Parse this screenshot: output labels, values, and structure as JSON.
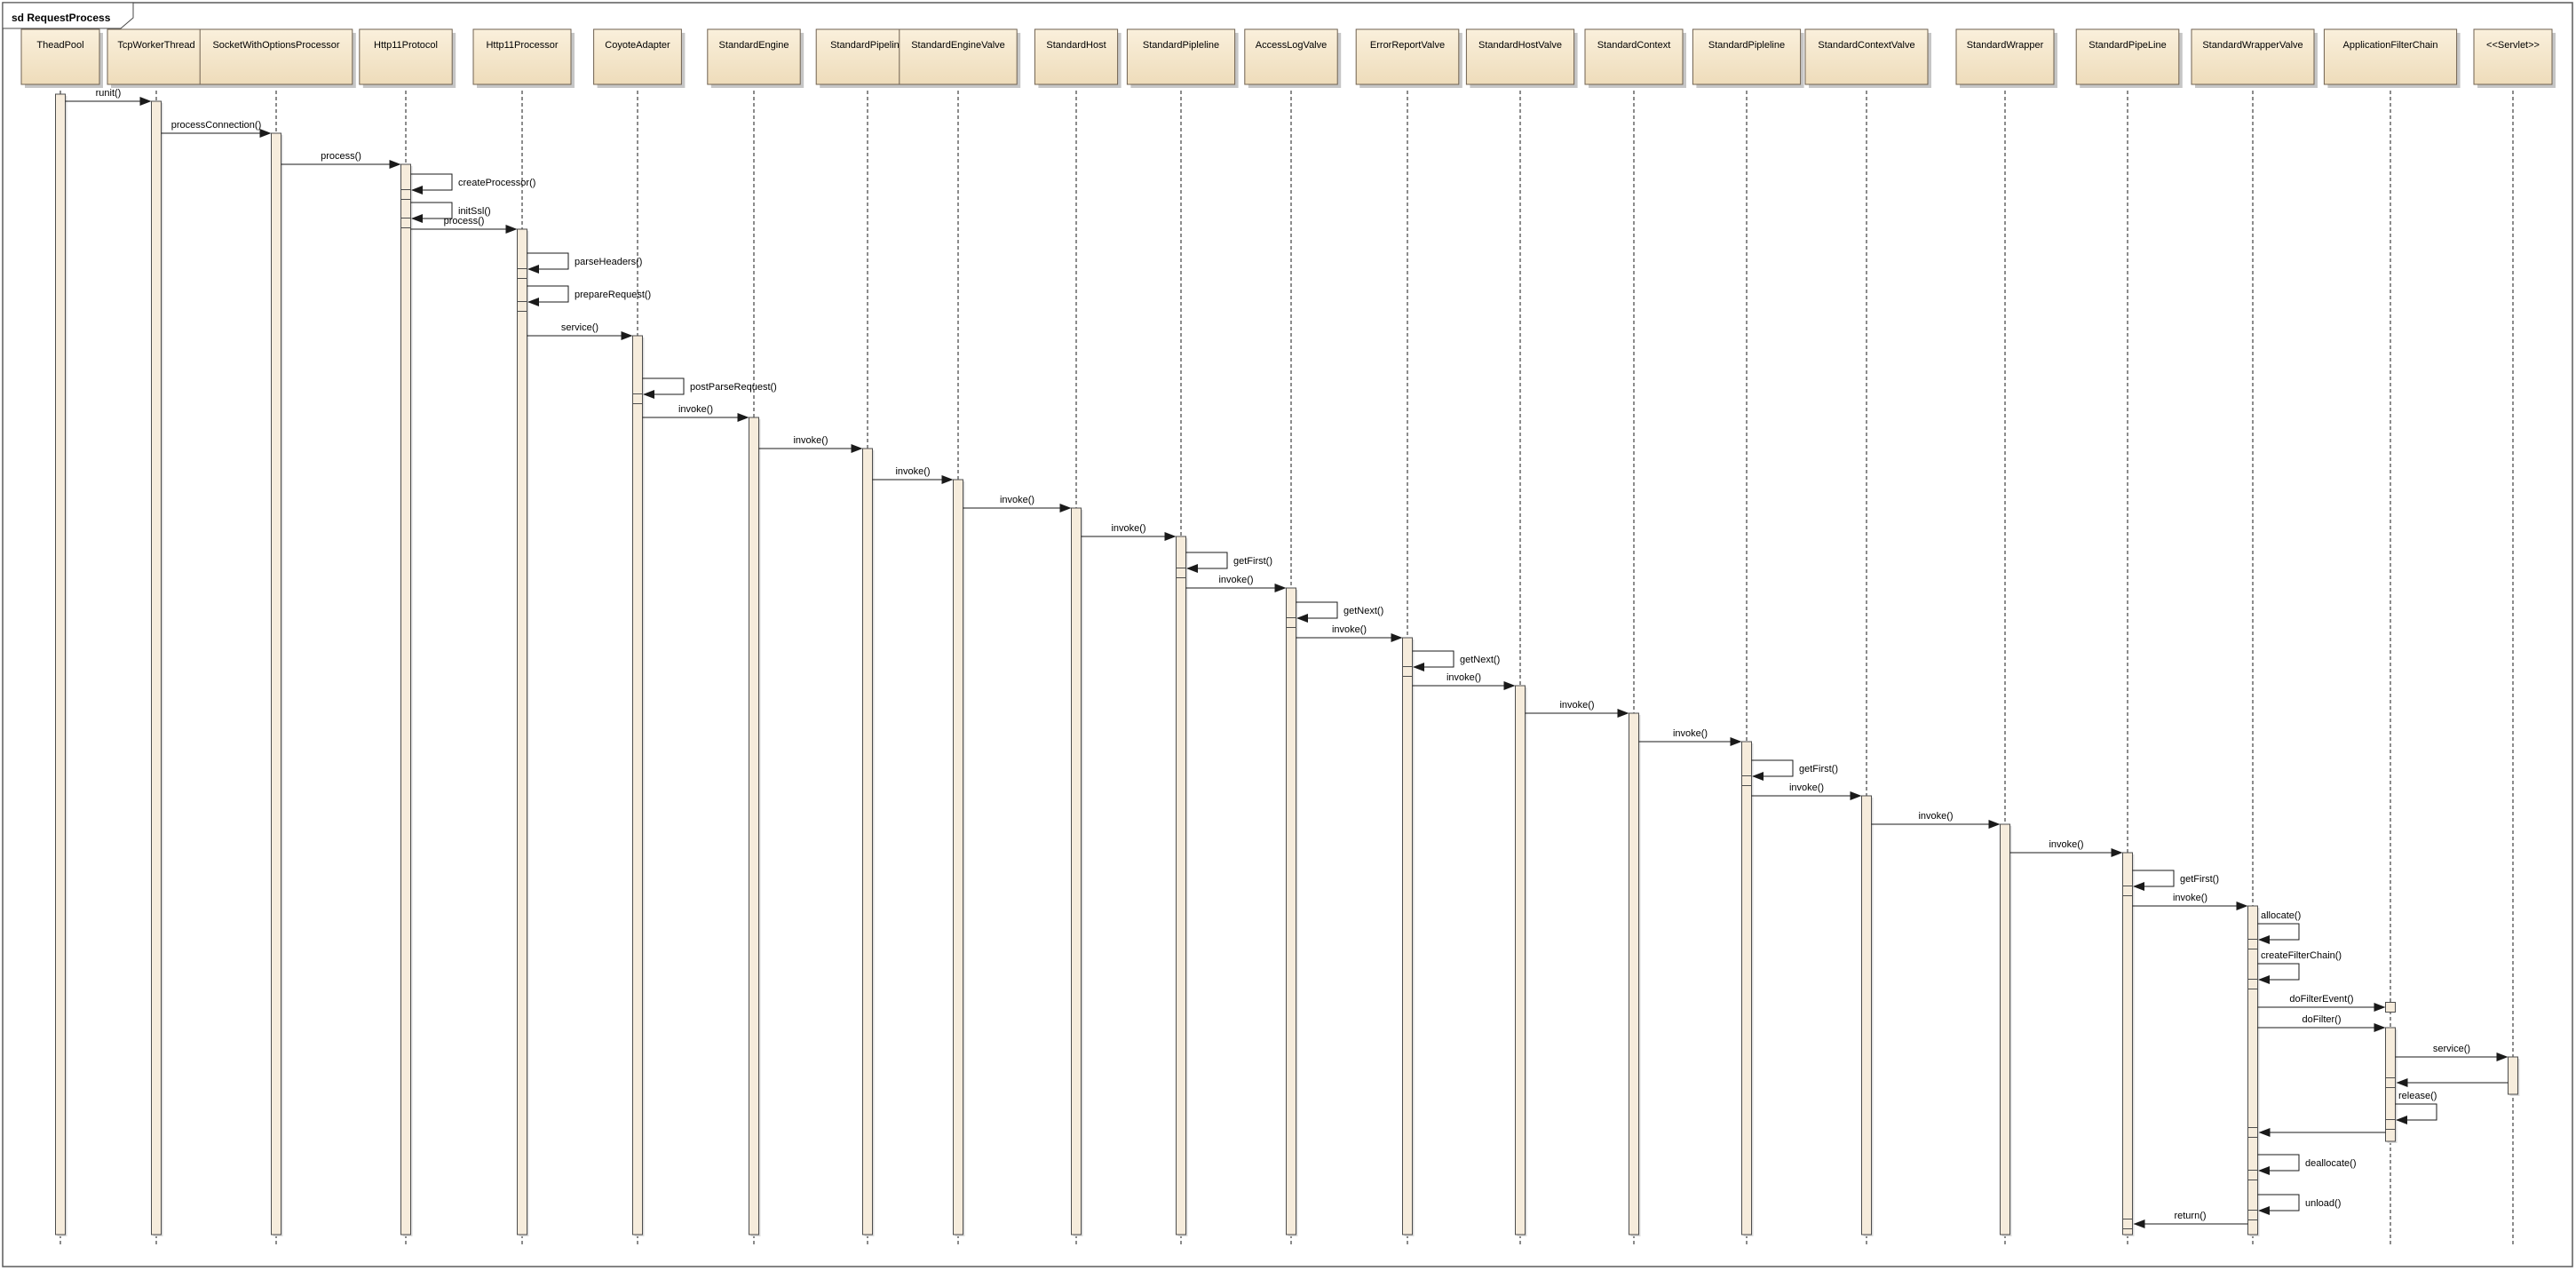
{
  "frame": {
    "label": "sd RequestProcess"
  },
  "colors": {
    "box_fill_top": "#FAF0DC",
    "box_fill_bottom": "#EEDCBA",
    "box_border": "#6F6150",
    "bar_fill": "#F6ECDC",
    "bar_border": "#4D4D4D",
    "shadow": "#C6C6C6",
    "line": "#1A1A1A",
    "background": "#FFFFFF"
  },
  "diagram": {
    "participants": [
      {
        "name": "TheadPool"
      },
      {
        "name": "TcpWorkerThread"
      },
      {
        "name": "SocketWithOptionsProcessor"
      },
      {
        "name": "Http11Protocol"
      },
      {
        "name": "Http11Processor"
      },
      {
        "name": "CoyoteAdapter"
      },
      {
        "name": "StandardEngine"
      },
      {
        "name": "StandardPipeline"
      },
      {
        "name": "StandardEngineValve"
      },
      {
        "name": "StandardHost"
      },
      {
        "name": "StandardPipleline"
      },
      {
        "name": "AccessLogValve"
      },
      {
        "name": "ErrorReportValve"
      },
      {
        "name": "StandardHostValve"
      },
      {
        "name": "StandardContext"
      },
      {
        "name": "StandardPipleline"
      },
      {
        "name": "StandardContextValve"
      },
      {
        "name": "StandardWrapper"
      },
      {
        "name": "StandardPipeLine"
      },
      {
        "name": "StandardWrapperValve"
      },
      {
        "name": "ApplicationFilterChain"
      },
      {
        "name": "<<Servlet>>"
      }
    ],
    "messages": [
      {
        "label": "runit()",
        "kind": "call",
        "from": 0,
        "to": 1
      },
      {
        "label": "processConnection()",
        "kind": "call",
        "from": 1,
        "to": 2
      },
      {
        "label": "process()",
        "kind": "call",
        "from": 2,
        "to": 3
      },
      {
        "label": "createProcessor()",
        "kind": "self",
        "on": 3
      },
      {
        "label": "initSsl()",
        "kind": "self",
        "on": 3
      },
      {
        "label": "process()",
        "kind": "call",
        "from": 3,
        "to": 4
      },
      {
        "label": "parseHeaders()",
        "kind": "self",
        "on": 4
      },
      {
        "label": "prepareRequest()",
        "kind": "self",
        "on": 4
      },
      {
        "label": "service()",
        "kind": "call",
        "from": 4,
        "to": 5
      },
      {
        "label": "postParseRequest()",
        "kind": "self",
        "on": 5
      },
      {
        "label": "invoke()",
        "kind": "call",
        "from": 5,
        "to": 6
      },
      {
        "label": "invoke()",
        "kind": "call",
        "from": 6,
        "to": 7
      },
      {
        "label": "invoke()",
        "kind": "call",
        "from": 7,
        "to": 8
      },
      {
        "label": "invoke()",
        "kind": "call",
        "from": 8,
        "to": 9
      },
      {
        "label": "invoke()",
        "kind": "call",
        "from": 9,
        "to": 10
      },
      {
        "label": "getFirst()",
        "kind": "self",
        "on": 10
      },
      {
        "label": "invoke()",
        "kind": "call",
        "from": 10,
        "to": 11
      },
      {
        "label": "getNext()",
        "kind": "self",
        "on": 11
      },
      {
        "label": "invoke()",
        "kind": "call",
        "from": 11,
        "to": 12
      },
      {
        "label": "getNext()",
        "kind": "self",
        "on": 12
      },
      {
        "label": "invoke()",
        "kind": "call",
        "from": 12,
        "to": 13
      },
      {
        "label": "invoke()",
        "kind": "call",
        "from": 13,
        "to": 14
      },
      {
        "label": "invoke()",
        "kind": "call",
        "from": 14,
        "to": 15
      },
      {
        "label": "getFirst()",
        "kind": "self",
        "on": 15
      },
      {
        "label": "invoke()",
        "kind": "call",
        "from": 15,
        "to": 16
      },
      {
        "label": "invoke()",
        "kind": "call",
        "from": 16,
        "to": 17
      },
      {
        "label": "invoke()",
        "kind": "call",
        "from": 17,
        "to": 18
      },
      {
        "label": "getFirst()",
        "kind": "self",
        "on": 18
      },
      {
        "label": "invoke()",
        "kind": "call",
        "from": 18,
        "to": 19
      },
      {
        "label": "allocate()",
        "kind": "self",
        "on": 19,
        "label_pos": "above"
      },
      {
        "label": "createFilterChain()",
        "kind": "self",
        "on": 19,
        "label_pos": "above"
      },
      {
        "label": "doFilterEvent()",
        "kind": "call",
        "from": 19,
        "to": 20,
        "target": "square"
      },
      {
        "label": "doFilter()",
        "kind": "call",
        "from": 19,
        "to": 20
      },
      {
        "label": "service()",
        "kind": "call",
        "from": 20,
        "to": 21
      },
      {
        "label": "",
        "kind": "return",
        "from": 21,
        "to": 20
      },
      {
        "label": "release()",
        "kind": "self",
        "on": 20,
        "label_pos": "above"
      },
      {
        "label": "",
        "kind": "return",
        "from": 20,
        "to": 19
      },
      {
        "label": "deallocate()",
        "kind": "self",
        "on": 19
      },
      {
        "label": "unload()",
        "kind": "self",
        "on": 19
      },
      {
        "label": "return()",
        "kind": "return",
        "from": 19,
        "to": 18
      }
    ]
  }
}
